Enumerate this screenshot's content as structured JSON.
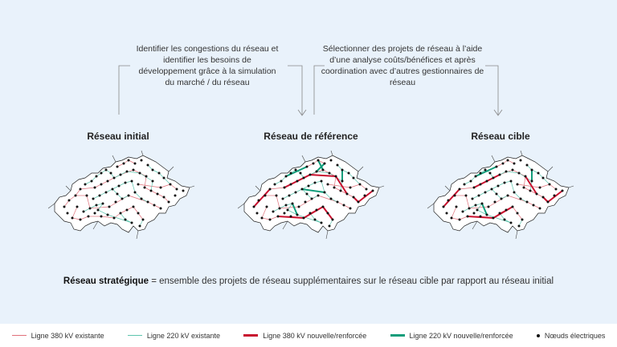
{
  "annotations": {
    "left": "Identifier les congestions du réseau et identifier les besoins de développement grâce à la simulation du marché / du réseau",
    "right": "Sélectionner des projets de réseau à l’aide d’une analyse coûts/bénéfices et après coordination avec d’autres gestionnaires de réseau"
  },
  "maps": [
    {
      "title": "Réseau initial"
    },
    {
      "title": "Réseau de référence"
    },
    {
      "title": "Réseau cible"
    }
  ],
  "statement": {
    "bold": "Réseau stratégique",
    "rest": " = ensemble des projets de réseau supplémentaires sur le réseau cible par rapport au réseau initial"
  },
  "legend": [
    {
      "label": "Ligne 380 kV existante",
      "color": "#e0707a",
      "style": "thin",
      "icon": "thin-red-line"
    },
    {
      "label": "Ligne 220 kV existante",
      "color": "#5cc4ad",
      "style": "thin",
      "icon": "thin-teal-line"
    },
    {
      "label": "Ligne 380 kV nouvelle/renforcée",
      "color": "#c8102e",
      "style": "thick",
      "icon": "thick-red-line"
    },
    {
      "label": "Ligne 220 kV nouvelle/renforcée",
      "color": "#0f9d7a",
      "style": "thick",
      "icon": "thick-teal-line"
    },
    {
      "label": "Nœuds électriques",
      "color": "#111111",
      "style": "dot",
      "icon": "node-dot"
    }
  ]
}
